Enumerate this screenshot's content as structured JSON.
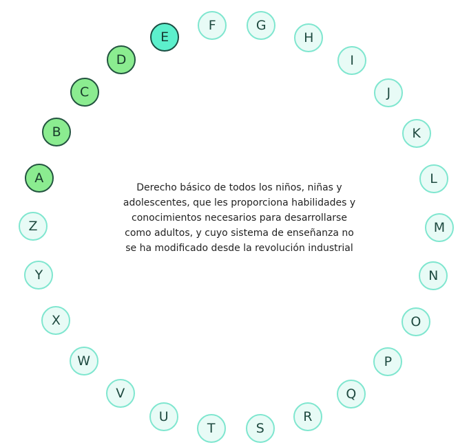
{
  "definition": "Derecho básico de todos los niños, niñas y adolescentes, que les proporciona habilidades y conocimientos necesarios para desarrollarse como adultos, y cuyo sistema de enseñanza no se ha modificado desde la revolución industrial",
  "colors": {
    "pending_fill": "#e8fbf6",
    "pending_border": "#7fe6cf",
    "correct_fill": "#8bec90",
    "current_fill": "#5cf0cc",
    "dark_border": "#22533f"
  },
  "letters": [
    {
      "label": "A",
      "state": "correct"
    },
    {
      "label": "B",
      "state": "correct"
    },
    {
      "label": "C",
      "state": "correct"
    },
    {
      "label": "D",
      "state": "correct"
    },
    {
      "label": "E",
      "state": "current"
    },
    {
      "label": "F",
      "state": "pending"
    },
    {
      "label": "G",
      "state": "pending"
    },
    {
      "label": "H",
      "state": "pending"
    },
    {
      "label": "I",
      "state": "pending"
    },
    {
      "label": "J",
      "state": "pending"
    },
    {
      "label": "K",
      "state": "pending"
    },
    {
      "label": "L",
      "state": "pending"
    },
    {
      "label": "M",
      "state": "pending"
    },
    {
      "label": "N",
      "state": "pending"
    },
    {
      "label": "O",
      "state": "pending"
    },
    {
      "label": "P",
      "state": "pending"
    },
    {
      "label": "Q",
      "state": "pending"
    },
    {
      "label": "R",
      "state": "pending"
    },
    {
      "label": "S",
      "state": "pending"
    },
    {
      "label": "T",
      "state": "pending"
    },
    {
      "label": "U",
      "state": "pending"
    },
    {
      "label": "V",
      "state": "pending"
    },
    {
      "label": "W",
      "state": "pending"
    },
    {
      "label": "X",
      "state": "pending"
    },
    {
      "label": "Y",
      "state": "pending"
    },
    {
      "label": "Z",
      "state": "pending"
    }
  ]
}
